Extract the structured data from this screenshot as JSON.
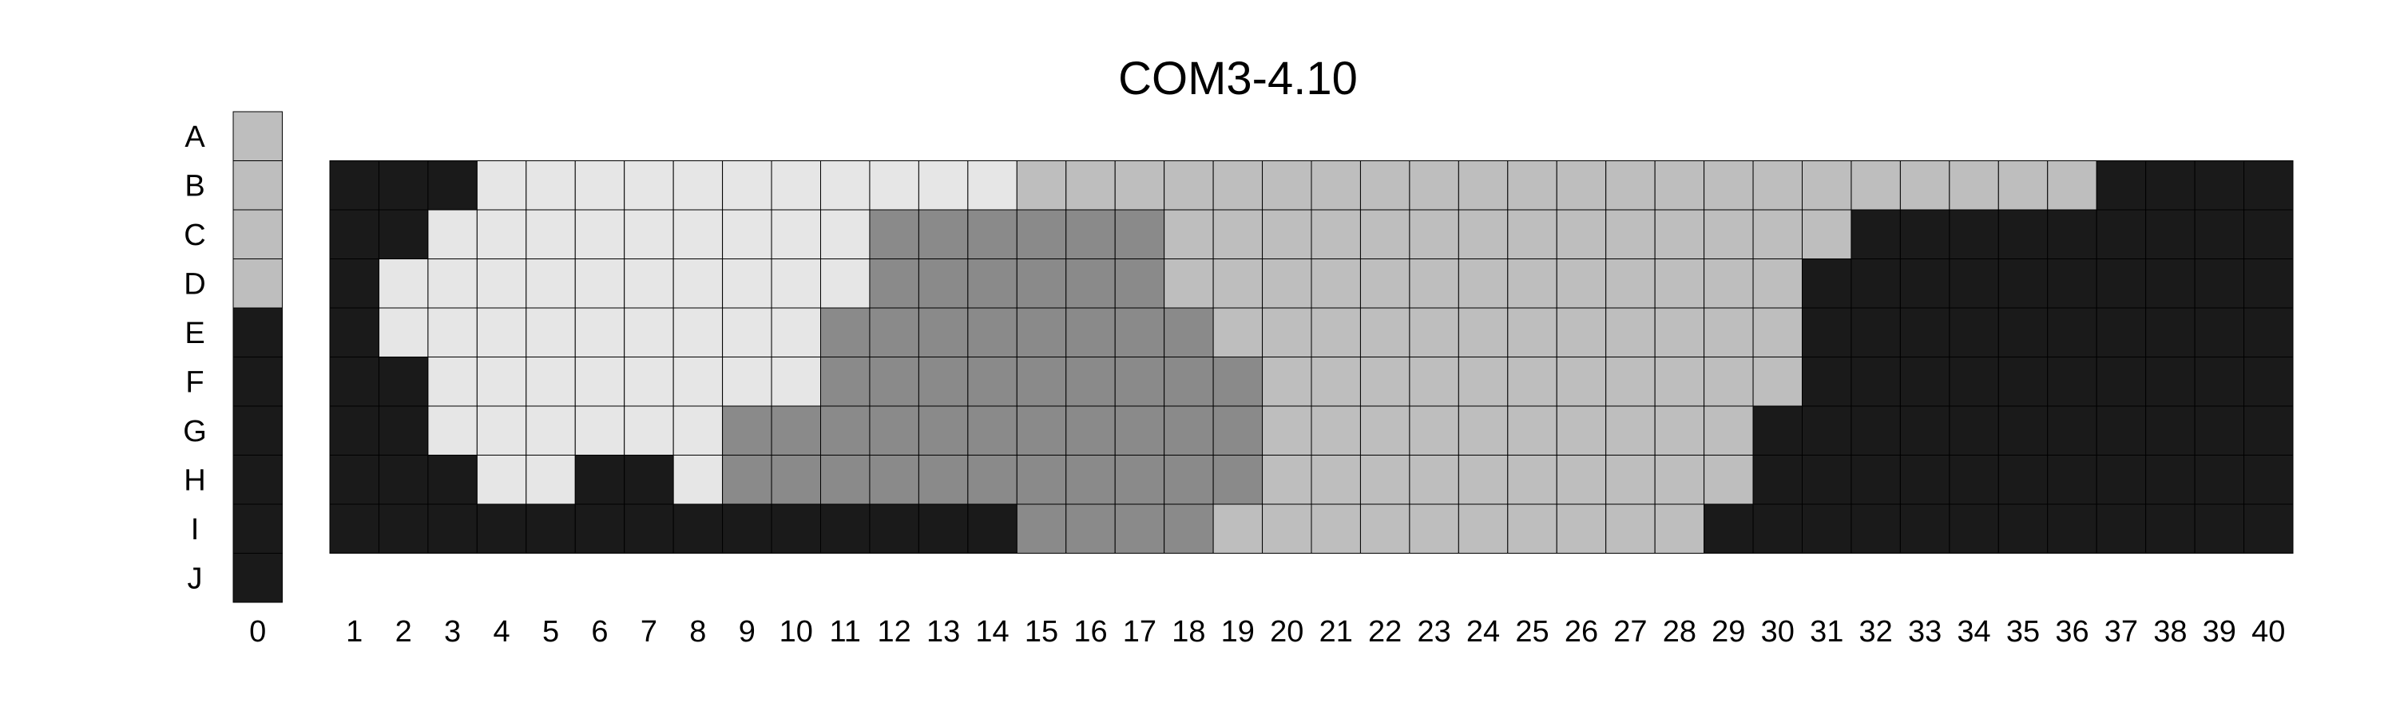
{
  "chart_data": {
    "type": "heatmap",
    "title": "COM3-4.10",
    "xlabel": "",
    "ylabel": "",
    "rows": [
      "A",
      "B",
      "C",
      "D",
      "E",
      "F",
      "G",
      "H",
      "I",
      "J"
    ],
    "columns": [
      "1",
      "2",
      "3",
      "4",
      "5",
      "6",
      "7",
      "8",
      "9",
      "10",
      "11",
      "12",
      "13",
      "14",
      "15",
      "16",
      "17",
      "18",
      "19",
      "20",
      "21",
      "22",
      "23",
      "24",
      "25",
      "26",
      "27",
      "28",
      "29",
      "30",
      "31",
      "32",
      "33",
      "34",
      "35",
      "36",
      "37",
      "38",
      "39",
      "40"
    ],
    "grid_rows": [
      "B",
      "C",
      "D",
      "E",
      "F",
      "G",
      "H",
      "I"
    ],
    "legend_column": {
      "label": "0",
      "rows": [
        "A",
        "B",
        "C",
        "D",
        "E",
        "F",
        "G",
        "H",
        "I",
        "J"
      ],
      "levels": [
        2,
        2,
        2,
        2,
        0,
        0,
        0,
        0,
        0,
        0
      ]
    },
    "levels_legend": {
      "0": "#1a1a1a",
      "1": "#8a8a8a",
      "2": "#bebebe",
      "3": "#e6e6e6"
    },
    "values": [
      [
        0,
        0,
        0,
        3,
        3,
        3,
        3,
        3,
        3,
        3,
        3,
        3,
        3,
        3,
        2,
        2,
        2,
        2,
        2,
        2,
        2,
        2,
        2,
        2,
        2,
        2,
        2,
        2,
        2,
        2,
        2,
        2,
        2,
        2,
        2,
        2,
        0,
        0,
        0,
        0
      ],
      [
        0,
        0,
        3,
        3,
        3,
        3,
        3,
        3,
        3,
        3,
        3,
        1,
        1,
        1,
        1,
        1,
        1,
        2,
        2,
        2,
        2,
        2,
        2,
        2,
        2,
        2,
        2,
        2,
        2,
        2,
        2,
        0,
        0,
        0,
        0,
        0,
        0,
        0,
        0,
        0
      ],
      [
        0,
        3,
        3,
        3,
        3,
        3,
        3,
        3,
        3,
        3,
        3,
        1,
        1,
        1,
        1,
        1,
        1,
        2,
        2,
        2,
        2,
        2,
        2,
        2,
        2,
        2,
        2,
        2,
        2,
        2,
        0,
        0,
        0,
        0,
        0,
        0,
        0,
        0,
        0,
        0
      ],
      [
        0,
        3,
        3,
        3,
        3,
        3,
        3,
        3,
        3,
        3,
        1,
        1,
        1,
        1,
        1,
        1,
        1,
        1,
        2,
        2,
        2,
        2,
        2,
        2,
        2,
        2,
        2,
        2,
        2,
        2,
        0,
        0,
        0,
        0,
        0,
        0,
        0,
        0,
        0,
        0
      ],
      [
        0,
        0,
        3,
        3,
        3,
        3,
        3,
        3,
        3,
        3,
        1,
        1,
        1,
        1,
        1,
        1,
        1,
        1,
        1,
        2,
        2,
        2,
        2,
        2,
        2,
        2,
        2,
        2,
        2,
        2,
        0,
        0,
        0,
        0,
        0,
        0,
        0,
        0,
        0,
        0
      ],
      [
        0,
        0,
        3,
        3,
        3,
        3,
        3,
        3,
        1,
        1,
        1,
        1,
        1,
        1,
        1,
        1,
        1,
        1,
        1,
        2,
        2,
        2,
        2,
        2,
        2,
        2,
        2,
        2,
        2,
        0,
        0,
        0,
        0,
        0,
        0,
        0,
        0,
        0,
        0,
        0
      ],
      [
        0,
        0,
        0,
        3,
        3,
        0,
        0,
        3,
        1,
        1,
        1,
        1,
        1,
        1,
        1,
        1,
        1,
        1,
        1,
        2,
        2,
        2,
        2,
        2,
        2,
        2,
        2,
        2,
        2,
        0,
        0,
        0,
        0,
        0,
        0,
        0,
        0,
        0,
        0,
        0
      ],
      [
        0,
        0,
        0,
        0,
        0,
        0,
        0,
        0,
        0,
        0,
        0,
        0,
        0,
        0,
        1,
        1,
        1,
        1,
        2,
        2,
        2,
        2,
        2,
        2,
        2,
        2,
        2,
        2,
        0,
        0,
        0,
        0,
        0,
        0,
        0,
        0,
        0,
        0,
        0,
        0
      ]
    ]
  }
}
